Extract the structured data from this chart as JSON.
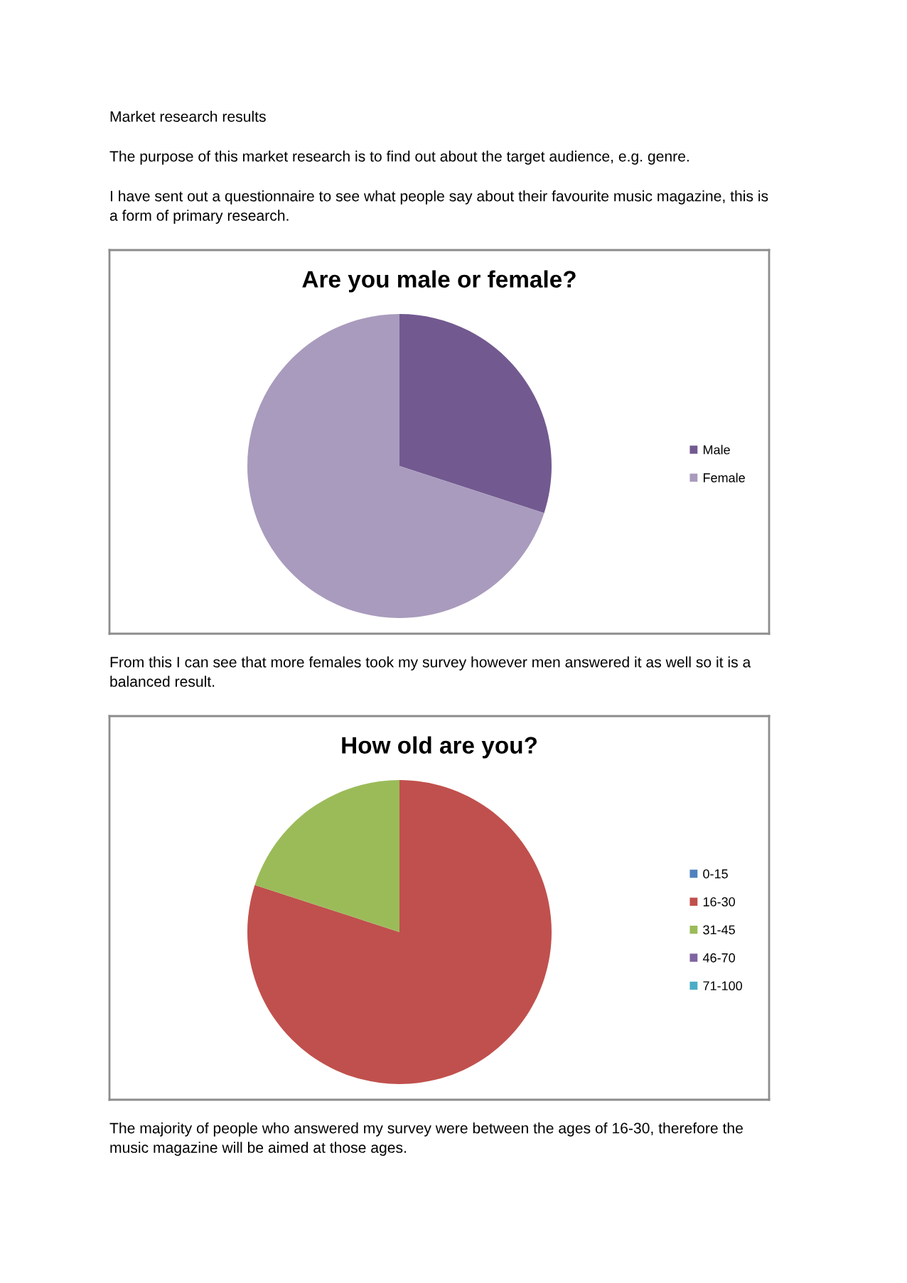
{
  "chart_data": [
    {
      "type": "pie",
      "title": "Are you male or female?",
      "categories": [
        "Male",
        "Female"
      ],
      "values": [
        30,
        70
      ],
      "colors": [
        "#725a90",
        "#a99bbd"
      ],
      "legend": "right",
      "annotations": [
        "Market research results",
        "The purpose of this market research is to find out about the target audience, e.g. genre.",
        "I have sent out a questionnaire to see what people say about their favourite music magazine, this is a form of primary research.",
        "From this I can see that more females took my survey however men answered it as well so it is a balanced result."
      ]
    },
    {
      "type": "pie",
      "title": "How old are you?",
      "categories": [
        "0-15",
        "16-30",
        "31-45",
        "46-70",
        "71-100"
      ],
      "values": [
        0,
        80,
        20,
        0,
        0
      ],
      "colors": [
        "#4f81bd",
        "#c0504d",
        "#9bbb59",
        "#8064a2",
        "#4bacc6"
      ],
      "legend": "right",
      "annotations": [
        "The majority of people who answered my survey were between the ages of 16-30, therefore the music magazine will be aimed at those ages."
      ]
    }
  ]
}
